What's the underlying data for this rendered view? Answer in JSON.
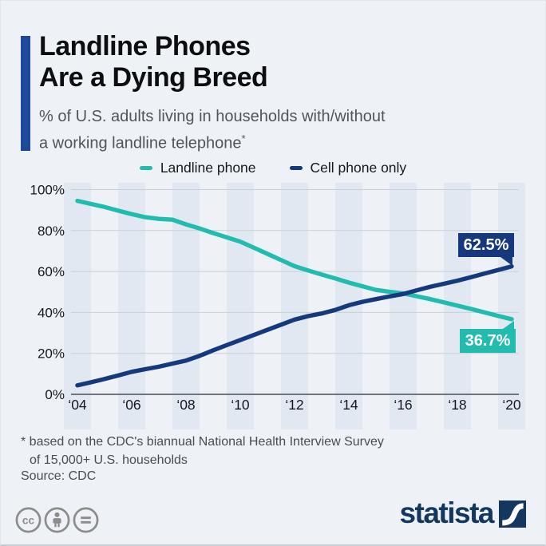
{
  "header": {
    "title_line1": "Landline Phones",
    "title_line2": "Are a Dying Breed",
    "subtitle_line1": "% of U.S. adults living in households with/without",
    "subtitle_line2": "a working landline telephone",
    "footnote_marker": "*"
  },
  "legend": {
    "items": [
      {
        "label": "Landline phone",
        "color": "#22bcae"
      },
      {
        "label": "Cell phone only",
        "color": "#16387d"
      }
    ]
  },
  "chart_data": {
    "type": "line",
    "x_start": 2004,
    "x_step": 0.5,
    "xlim": [
      2004,
      2020
    ],
    "ylim": [
      0,
      100
    ],
    "grid": "horizontal",
    "legend_position": "top",
    "x_ticks": [
      {
        "year": 2004,
        "label": "‘04"
      },
      {
        "year": 2006,
        "label": "‘06"
      },
      {
        "year": 2008,
        "label": "‘08"
      },
      {
        "year": 2010,
        "label": "‘10"
      },
      {
        "year": 2012,
        "label": "‘12"
      },
      {
        "year": 2014,
        "label": "‘14"
      },
      {
        "year": 2016,
        "label": "‘16"
      },
      {
        "year": 2018,
        "label": "‘18"
      },
      {
        "year": 2020,
        "label": "‘20"
      }
    ],
    "y_ticks": [
      {
        "value": 0,
        "label": "0%"
      },
      {
        "value": 20,
        "label": "20%"
      },
      {
        "value": 40,
        "label": "40%"
      },
      {
        "value": 60,
        "label": "60%"
      },
      {
        "value": 80,
        "label": "80%"
      },
      {
        "value": 100,
        "label": "100%"
      }
    ],
    "series": [
      {
        "name": "Landline phone",
        "color": "#22bcae",
        "values": [
          94.5,
          93.0,
          91.5,
          89.7,
          88.0,
          86.5,
          85.7,
          85.3,
          83.0,
          81.0,
          78.8,
          76.7,
          74.6,
          71.6,
          68.6,
          65.6,
          62.6,
          60.5,
          58.5,
          56.6,
          54.6,
          52.8,
          51.0,
          50.1,
          49.3,
          47.9,
          46.5,
          44.9,
          43.3,
          41.7,
          40.0,
          38.3,
          36.7
        ]
      },
      {
        "name": "Cell phone only",
        "color": "#16387d",
        "values": [
          4.4,
          5.9,
          7.5,
          9.2,
          11.0,
          12.3,
          13.5,
          15.0,
          16.5,
          18.8,
          21.5,
          24.0,
          26.5,
          29.0,
          31.5,
          34.0,
          36.5,
          38.2,
          39.5,
          41.2,
          43.5,
          45.2,
          46.5,
          47.8,
          49.0,
          50.8,
          52.5,
          54.0,
          55.5,
          57.2,
          59.0,
          60.7,
          62.5
        ]
      }
    ],
    "annotations": [
      {
        "series": "Cell phone only",
        "x": 2020,
        "y": 62.5,
        "label": "62.5%",
        "color": "#16387d"
      },
      {
        "series": "Landline phone",
        "x": 2020,
        "y": 36.7,
        "label": "36.7%",
        "color": "#22bcae"
      }
    ],
    "styles": {
      "stripe_color": "#e2e8f1",
      "grid_color": "#c9cfd6",
      "axis_color": "#6f767d",
      "tick_text_color": "#14181c"
    }
  },
  "footer": {
    "footnote_line1": "* based on the CDC's biannual National Health Interview Survey",
    "footnote_line2": "of 15,000+ U.S. households",
    "source": "Source: CDC",
    "brand": "statista",
    "license_icons": [
      "cc",
      "attribution",
      "no-derivatives"
    ]
  }
}
